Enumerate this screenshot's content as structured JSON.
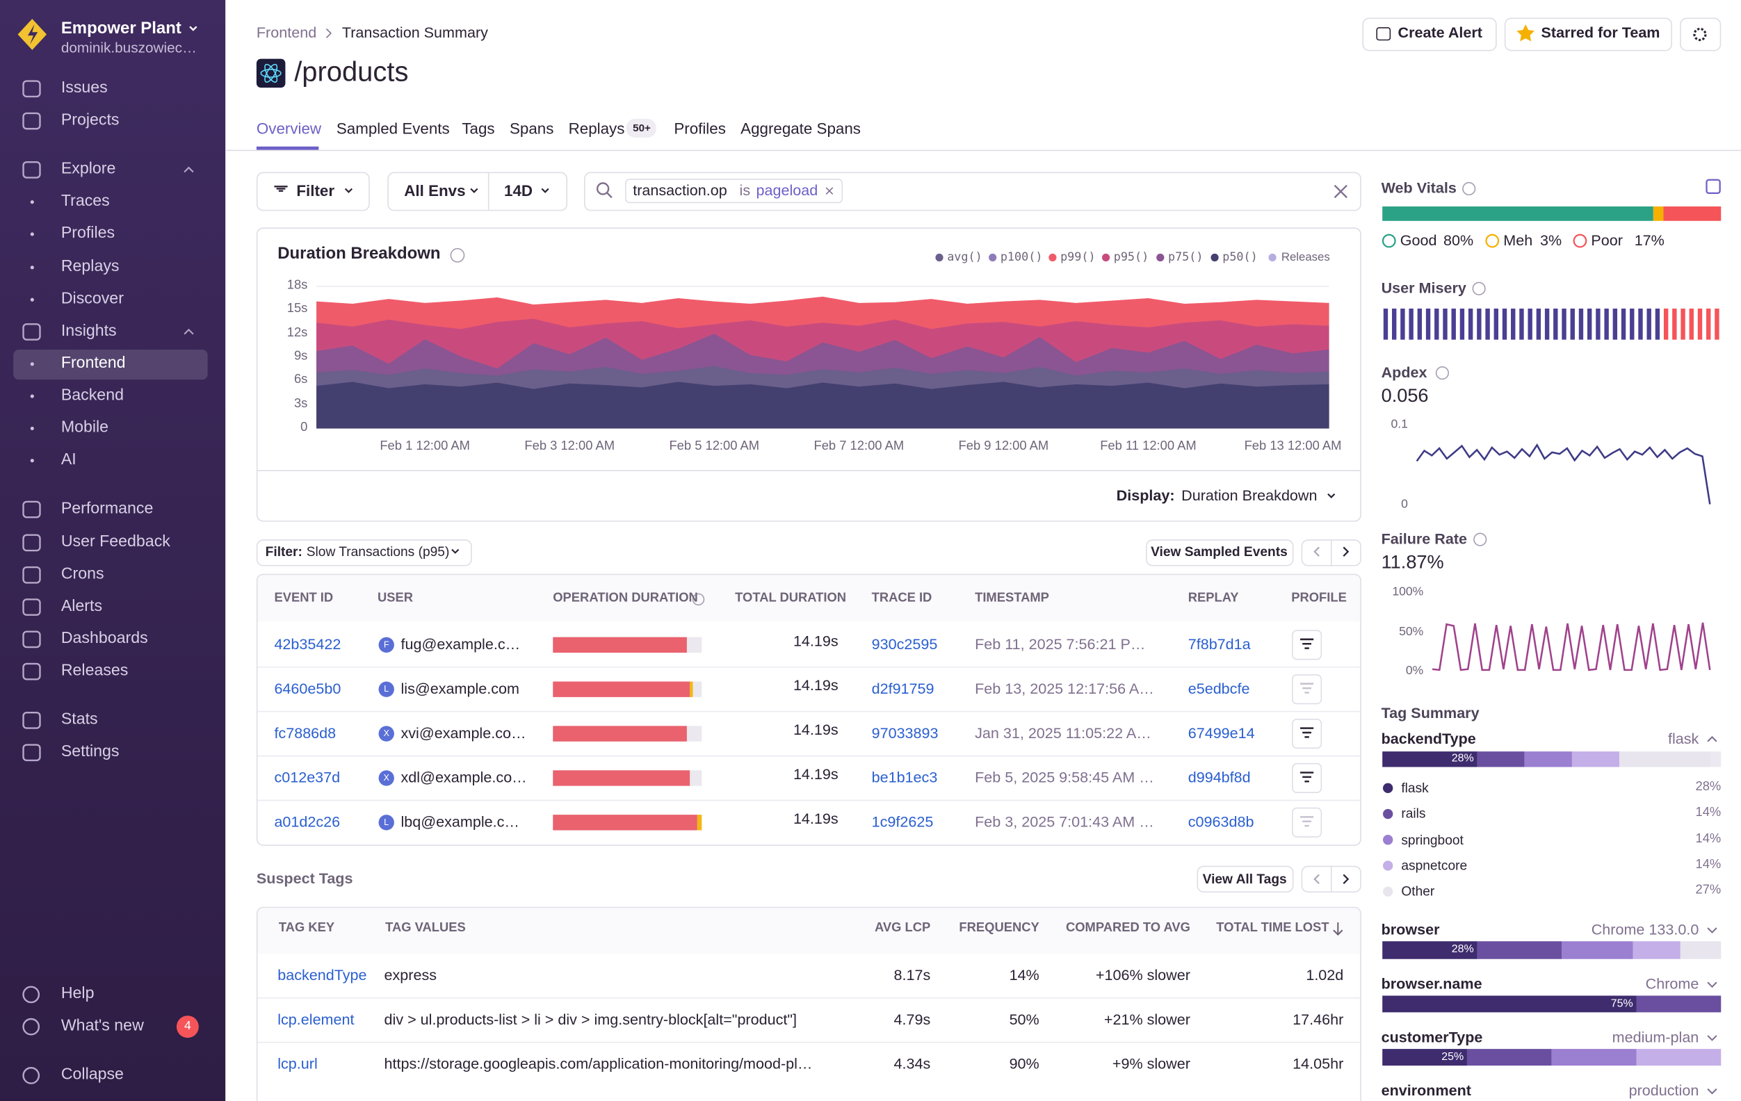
{
  "sidebar": {
    "org": "Empower Plant",
    "user": "dominik.buszowiec…",
    "nav": [
      {
        "label": "Issues"
      },
      {
        "label": "Projects"
      },
      {
        "label": "Explore",
        "children": [
          "Traces",
          "Profiles",
          "Replays",
          "Discover"
        ]
      },
      {
        "label": "Insights",
        "children": [
          "Frontend",
          "Backend",
          "Mobile",
          "AI"
        ]
      },
      {
        "label": "Performance"
      },
      {
        "label": "User Feedback"
      },
      {
        "label": "Crons"
      },
      {
        "label": "Alerts"
      },
      {
        "label": "Dashboards"
      },
      {
        "label": "Releases"
      },
      {
        "label": "Stats"
      },
      {
        "label": "Settings"
      }
    ],
    "help": "Help",
    "whats_new": "What's new",
    "whats_new_badge": 4,
    "collapse": "Collapse"
  },
  "header": {
    "breadcrumb": [
      "Frontend",
      "Transaction Summary"
    ],
    "title": "/products",
    "buttons": [
      "Create Alert",
      "Starred for Team"
    ],
    "tabs": [
      "Overview",
      "Sampled Events",
      "Tags",
      "Spans",
      "Replays",
      "Profiles",
      "Aggregate Spans"
    ],
    "replays_badge": "50+"
  },
  "filters": {
    "filter": "Filter",
    "env": "All Envs",
    "period": "14D",
    "token_key": "transaction.op",
    "token_op": "is",
    "token_value": "pageload"
  },
  "chart_data": [
    {
      "type": "area",
      "title": "Duration Breakdown",
      "categories": [
        null,
        null,
        null,
        "Feb 1 12:00 AM",
        null,
        null,
        null,
        "Feb 3 12:00 AM",
        null,
        null,
        null,
        "Feb 5 12:00 AM",
        null,
        null,
        null,
        "Feb 7 12:00 AM",
        null,
        null,
        null,
        "Feb 9 12:00 AM",
        null,
        null,
        null,
        "Feb 11 12:00 AM",
        null,
        null,
        null,
        "Feb 13 12:00 AM",
        null
      ],
      "series": [
        {
          "name": "avg()",
          "color": "#6b5f8c",
          "values": [
            7.1,
            7.4,
            6.8,
            7.6,
            7.0,
            6.7,
            7.5,
            7.2,
            7.8,
            6.9,
            7.3,
            7.9,
            7.0,
            6.8,
            7.5,
            7.1,
            7.7,
            6.9,
            7.4,
            7.0,
            7.8,
            6.7,
            7.3,
            7.1,
            7.6,
            6.9,
            7.4,
            7.0,
            7.2
          ]
        },
        {
          "name": "p100()",
          "color": "#8e7cb8",
          "values": [
            16.0,
            15.7,
            16.3,
            15.8,
            16.1,
            16.5,
            15.6,
            15.9,
            16.2,
            15.8,
            16.4,
            16.0,
            15.7,
            16.1,
            16.6,
            15.8,
            15.9,
            16.3,
            15.7,
            16.0,
            16.2,
            15.8,
            16.1,
            16.4,
            15.7,
            15.9,
            16.2,
            16.0,
            15.8
          ]
        },
        {
          "name": "p99()",
          "color": "#f05b6a",
          "values": [
            16.1,
            15.8,
            16.4,
            15.9,
            16.2,
            16.6,
            15.7,
            16.0,
            16.3,
            15.9,
            16.5,
            16.1,
            15.8,
            16.2,
            16.7,
            15.9,
            16.0,
            16.4,
            15.8,
            16.1,
            16.3,
            15.9,
            16.2,
            16.5,
            15.8,
            16.0,
            16.3,
            16.1,
            15.9
          ]
        },
        {
          "name": "p95()",
          "color": "#c94b7e",
          "values": [
            13.4,
            12.9,
            13.8,
            13.1,
            12.6,
            13.5,
            13.9,
            12.8,
            13.3,
            13.6,
            12.7,
            13.2,
            13.7,
            12.9,
            13.4,
            13.0,
            13.8,
            12.6,
            13.3,
            13.5,
            12.9,
            13.6,
            13.1,
            12.8,
            13.4,
            13.7,
            12.9,
            13.2,
            13.0
          ]
        },
        {
          "name": "p75()",
          "color": "#8a5592",
          "values": [
            9.8,
            10.5,
            8.2,
            11.3,
            9.1,
            7.6,
            10.8,
            9.4,
            11.5,
            8.7,
            10.1,
            12.0,
            9.3,
            8.5,
            10.9,
            9.7,
            11.2,
            8.9,
            10.4,
            9.0,
            11.6,
            8.4,
            10.2,
            9.6,
            11.1,
            8.8,
            10.6,
            9.5,
            10.0
          ]
        },
        {
          "name": "p50()",
          "color": "#43406f",
          "values": [
            5.4,
            5.9,
            5.1,
            5.6,
            5.3,
            5.8,
            5.0,
            5.7,
            5.5,
            5.2,
            5.9,
            5.4,
            5.6,
            5.1,
            5.8,
            5.3,
            5.7,
            5.0,
            5.5,
            5.9,
            5.2,
            5.6,
            5.4,
            5.8,
            5.1,
            5.7,
            5.3,
            5.5,
            5.6
          ]
        }
      ],
      "releases_label": "Releases",
      "releases_color": "#b6aee0",
      "ylim": [
        0,
        18
      ],
      "yticks": [
        {
          "value": 0,
          "label": "0"
        },
        {
          "value": 3,
          "label": "3s"
        },
        {
          "value": 6,
          "label": "6s"
        },
        {
          "value": 9,
          "label": "9s"
        },
        {
          "value": 12,
          "label": "12s"
        },
        {
          "value": 15,
          "label": "15s"
        },
        {
          "value": 18,
          "label": "18s"
        }
      ],
      "display_label": "Display:",
      "display_value": "Duration Breakdown"
    },
    {
      "type": "line",
      "title": "Apdex",
      "summary": 0.056,
      "color": "#3d3a86",
      "ylim": [
        0,
        0.1
      ],
      "yticks": [
        0,
        0.1
      ],
      "values": [
        0.055,
        0.068,
        0.062,
        0.071,
        0.058,
        0.066,
        0.074,
        0.06,
        0.069,
        0.057,
        0.072,
        0.063,
        0.067,
        0.059,
        0.07,
        0.061,
        0.075,
        0.058,
        0.066,
        0.064,
        0.071,
        0.056,
        0.068,
        0.062,
        0.073,
        0.059,
        0.065,
        0.07,
        0.057,
        0.067,
        0.063,
        0.072,
        0.06,
        0.069,
        0.058,
        0.066,
        0.071,
        0.064,
        0.061,
        0.001
      ]
    },
    {
      "type": "line",
      "title": "Failure Rate",
      "summary": {
        "value": 11.87,
        "label": "11.87%"
      },
      "color": "#a0428c",
      "ylim": [
        0,
        100
      ],
      "yticks": [
        {
          "value": 0,
          "label": "0%"
        },
        {
          "value": 50,
          "label": "50%"
        },
        {
          "value": 100,
          "label": "100%"
        }
      ],
      "values": [
        3,
        2,
        60,
        58,
        2,
        3,
        61,
        2,
        2,
        59,
        3,
        58,
        2,
        2,
        60,
        3,
        57,
        2,
        2,
        61,
        3,
        58,
        2,
        3,
        59,
        2,
        60,
        2,
        2,
        58,
        3,
        61,
        2,
        3,
        59,
        2,
        60,
        3,
        62,
        2
      ]
    }
  ],
  "events_table": {
    "filter_label": "Filter:",
    "filter_value": "Slow Transactions (p95)",
    "button": "View Sampled Events",
    "columns": [
      "EVENT ID",
      "USER",
      "OPERATION DURATION",
      "TOTAL DURATION",
      "TRACE ID",
      "TIMESTAMP",
      "REPLAY",
      "PROFILE"
    ],
    "rows": [
      {
        "event_id": "42b35422",
        "avatar": "F",
        "user": "fug@example.c…",
        "operation_duration": [
          90,
          0
        ],
        "total_duration": "14.19s",
        "trace_id": "930c2595",
        "timestamp": "Feb 11, 2025 7:56:21 P…",
        "replay": "7f8b7d1a",
        "has_profile": true
      },
      {
        "event_id": "6460e5b0",
        "avatar": "L",
        "user": "lis@example.com",
        "operation_duration": [
          92,
          2
        ],
        "total_duration": "14.19s",
        "trace_id": "d2f91759",
        "timestamp": "Feb 13, 2025 12:17:56 A…",
        "replay": "e5edbcfe",
        "has_profile": false
      },
      {
        "event_id": "fc7886d8",
        "avatar": "X",
        "user": "xvi@example.co…",
        "operation_duration": [
          90,
          0
        ],
        "total_duration": "14.19s",
        "trace_id": "97033893",
        "timestamp": "Jan 31, 2025 11:05:22 A…",
        "replay": "67499e14",
        "has_profile": true
      },
      {
        "event_id": "c012e37d",
        "avatar": "X",
        "user": "xdl@example.co…",
        "operation_duration": [
          92,
          0
        ],
        "total_duration": "14.19s",
        "trace_id": "be1b1ec3",
        "timestamp": "Feb 5, 2025 9:58:45 AM …",
        "replay": "d994bf8d",
        "has_profile": true
      },
      {
        "event_id": "a01d2c26",
        "avatar": "L",
        "user": "lbq@example.c…",
        "operation_duration": [
          97,
          3
        ],
        "total_duration": "14.19s",
        "trace_id": "1c9f2625",
        "timestamp": "Feb 3, 2025 7:01:43 AM …",
        "replay": "c0963d8b",
        "has_profile": false
      }
    ]
  },
  "suspect_tags": {
    "title": "Suspect Tags",
    "button": "View All Tags",
    "columns": [
      "TAG KEY",
      "TAG VALUES",
      "AVG LCP",
      "FREQUENCY",
      "COMPARED TO AVG",
      "TOTAL TIME LOST"
    ],
    "rows": [
      {
        "key": "backendType",
        "values": "express",
        "avg_lcp": "8.17s",
        "frequency": "14%",
        "compared": "+106% slower",
        "lost": "1.02d"
      },
      {
        "key": "lcp.element",
        "values": "div > ul.products-list > li > div > img.sentry-block[alt=\"product\"]",
        "avg_lcp": "4.79s",
        "frequency": "50%",
        "compared": "+21% slower",
        "lost": "17.46hr"
      },
      {
        "key": "lcp.url",
        "values": "https://storage.googleapis.com/application-monitoring/mood-pl…",
        "avg_lcp": "4.34s",
        "frequency": "90%",
        "compared": "+9% slower",
        "lost": "14.05hr"
      }
    ]
  },
  "web_vitals": {
    "title": "Web Vitals",
    "segments": [
      {
        "name": "Good",
        "value": 80,
        "value_label": "80%",
        "color": "#2ba185"
      },
      {
        "name": "Meh",
        "value": 3,
        "value_label": "3%",
        "color": "#f5b000"
      },
      {
        "name": "Poor",
        "value": 17,
        "value_label": "17%",
        "color": "#f55459"
      }
    ]
  },
  "user_misery": {
    "title": "User Misery"
  },
  "tag_summary": {
    "title": "Tag Summary",
    "palette": [
      "#3e2c6e",
      "#6a4fa0",
      "#9b7fd0",
      "#c4afe8",
      "#e8e5ee"
    ],
    "tags": [
      {
        "key": "backendType",
        "top": "flask",
        "segments": [
          {
            "name": "flask",
            "value": 28,
            "value_label": "28%"
          },
          {
            "name": "rails",
            "value": 14,
            "value_label": "14%"
          },
          {
            "name": "springboot",
            "value": 14,
            "value_label": "14%"
          },
          {
            "name": "aspnetcore",
            "value": 14,
            "value_label": "14%"
          },
          {
            "name": "Other",
            "value": 27,
            "value_label": "27%"
          }
        ]
      },
      {
        "key": "browser",
        "top": "Chrome 133.0.0",
        "segments": [
          {
            "value": 28,
            "value_label": "28%"
          },
          {
            "value": 25
          },
          {
            "value": 21
          },
          {
            "value": 14
          },
          {
            "value": 12
          }
        ]
      },
      {
        "key": "browser.name",
        "top": "Chrome",
        "segments": [
          {
            "value": 75,
            "value_label": "75%"
          },
          {
            "value": 25
          }
        ]
      },
      {
        "key": "customerType",
        "top": "medium-plan",
        "segments": [
          {
            "value": 25,
            "value_label": "25%"
          },
          {
            "value": 25
          },
          {
            "value": 25
          },
          {
            "value": 25
          }
        ]
      },
      {
        "key": "environment",
        "top": "production",
        "segments": []
      }
    ]
  }
}
